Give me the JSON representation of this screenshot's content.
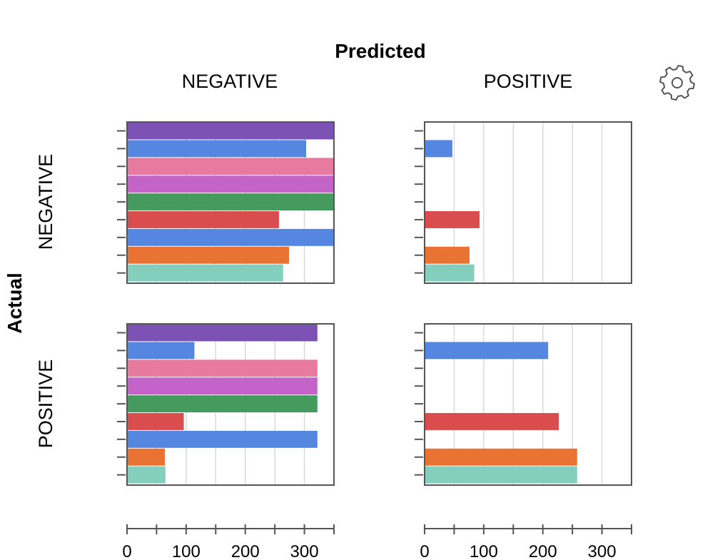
{
  "chart_data": {
    "type": "bar",
    "orientation": "horizontal",
    "layout": "faceted 2x2 (rows: Actual, columns: Predicted)",
    "title": "Predicted",
    "column_axis_title": "Predicted",
    "row_axis_title": "Actual",
    "column_labels": [
      "NEGATIVE",
      "POSITIVE"
    ],
    "row_labels": [
      "NEGATIVE",
      "POSITIVE"
    ],
    "xlim": [
      0,
      350
    ],
    "x_ticks": [
      0,
      50,
      100,
      150,
      200,
      250,
      300,
      350
    ],
    "x_tick_labels": [
      "0",
      "",
      "100",
      "",
      "200",
      "",
      "300",
      ""
    ],
    "grid": true,
    "colors": [
      "#7d52b5",
      "#5587e0",
      "#e87aa0",
      "#c464c8",
      "#459a5e",
      "#da4d4e",
      "#5587e0",
      "#e87333",
      "#84cebd"
    ],
    "panels": [
      {
        "row": "NEGATIVE",
        "column": "NEGATIVE",
        "values": [
          350,
          303,
          350,
          350,
          350,
          257,
          350,
          274,
          264
        ]
      },
      {
        "row": "NEGATIVE",
        "column": "POSITIVE",
        "values": [
          0,
          47,
          0,
          0,
          0,
          93,
          0,
          76,
          84
        ]
      },
      {
        "row": "POSITIVE",
        "column": "NEGATIVE",
        "values": [
          322,
          114,
          322,
          322,
          322,
          96,
          322,
          64,
          65
        ]
      },
      {
        "row": "POSITIVE",
        "column": "POSITIVE",
        "values": [
          0,
          209,
          0,
          0,
          0,
          227,
          0,
          258,
          258
        ]
      }
    ]
  },
  "toolbar": {
    "settings_icon": "gear-icon"
  }
}
